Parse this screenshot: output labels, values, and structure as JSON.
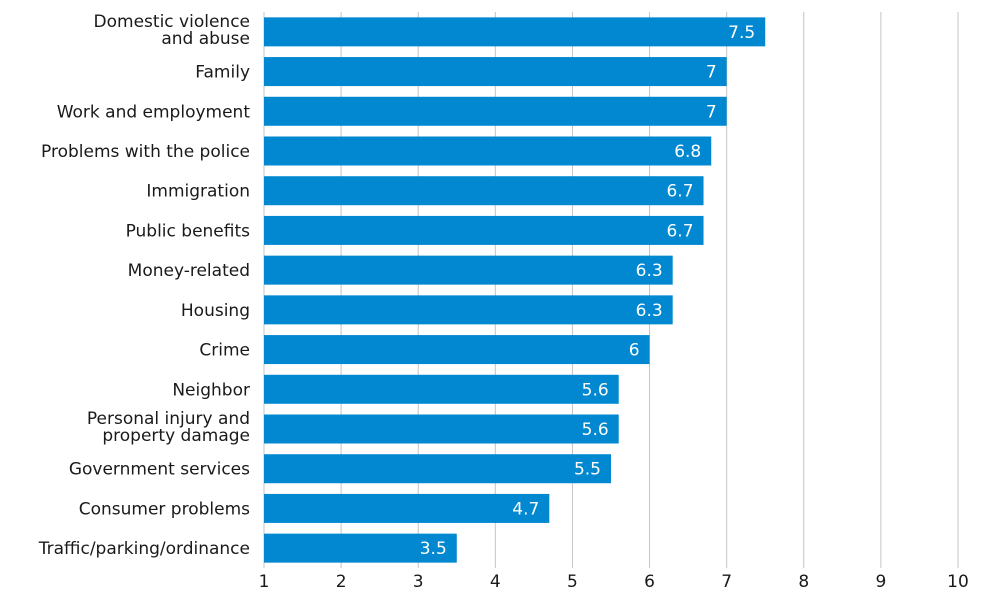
{
  "chart_data": {
    "type": "bar",
    "orientation": "horizontal",
    "categories": [
      "Domestic violence and abuse",
      "Family",
      "Work and employment",
      "Problems with the police",
      "Immigration",
      "Public benefits",
      "Money-related",
      "Housing",
      "Crime",
      "Neighbor",
      "Personal injury and property damage",
      "Government services",
      "Consumer problems",
      "Traffic/parking/ordinance"
    ],
    "values": [
      7.5,
      7,
      7,
      6.8,
      6.7,
      6.7,
      6.3,
      6.3,
      6,
      5.6,
      5.6,
      5.5,
      4.7,
      3.5
    ],
    "value_labels": [
      "7.5",
      "7",
      "7",
      "6.8",
      "6.7",
      "6.7",
      "6.3",
      "6.3",
      "6",
      "5.6",
      "5.6",
      "5.5",
      "4.7",
      "3.5"
    ],
    "xlim": [
      1,
      10
    ],
    "xticks": [
      "1",
      "2",
      "3",
      "4",
      "5",
      "6",
      "7",
      "8",
      "9",
      "10"
    ],
    "grid": true,
    "bar_color": "#0288d1",
    "title": "",
    "xlabel": "",
    "ylabel": ""
  }
}
